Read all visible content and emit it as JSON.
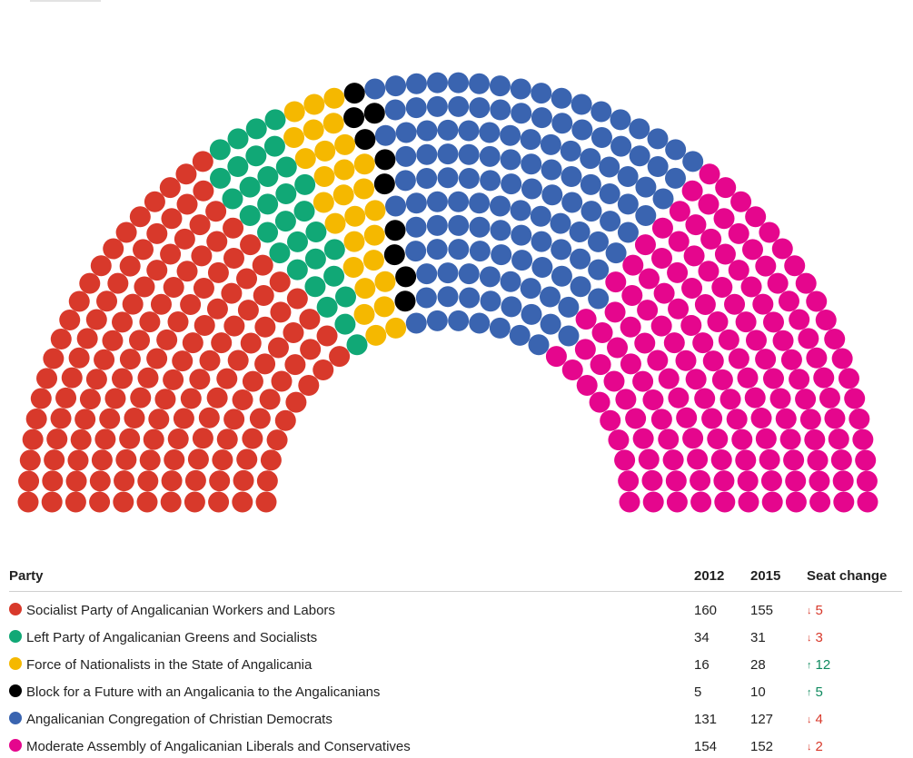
{
  "chart_data": {
    "type": "parliament",
    "total_seats": 503,
    "parties": [
      {
        "name": "Socialist Party of Angalicanian Workers and Labors",
        "seats": 155,
        "color": "#d8392b"
      },
      {
        "name": "Left Party of Angalicanian Greens and Socialists",
        "seats": 31,
        "color": "#11a876"
      },
      {
        "name": "Force of Nationalists in the State of Angalicania",
        "seats": 28,
        "color": "#f5b800"
      },
      {
        "name": "Block for a Future with an Angalicania to the Angalicanians",
        "seats": 10,
        "color": "#000000"
      },
      {
        "name": "Angalicanian Congregation of Christian Democrats",
        "seats": 127,
        "color": "#3a64b0"
      },
      {
        "name": "Moderate Assembly of Angalicanian Liberals and Conservatives",
        "seats": 152,
        "color": "#e5068d"
      }
    ]
  },
  "table": {
    "headers": {
      "party": "Party",
      "y2012": "2012",
      "y2015": "2015",
      "change": "Seat change"
    },
    "rows": [
      {
        "party": "Socialist Party of Angalicanian Workers and Labors",
        "color": "#d8392b",
        "seats_2012": "160",
        "seats_2015": "155",
        "change": "5",
        "direction": "down"
      },
      {
        "party": "Left Party of Angalicanian Greens and Socialists",
        "color": "#11a876",
        "seats_2012": "34",
        "seats_2015": "31",
        "change": "3",
        "direction": "down"
      },
      {
        "party": "Force of Nationalists in the State of Angalicania",
        "color": "#f5b800",
        "seats_2012": "16",
        "seats_2015": "28",
        "change": "12",
        "direction": "up"
      },
      {
        "party": "Block for a Future with an Angalicania to the Angalicanians",
        "color": "#000000",
        "seats_2012": "5",
        "seats_2015": "10",
        "change": "5",
        "direction": "up"
      },
      {
        "party": "Angalicanian Congregation of Christian Democrats",
        "color": "#3a64b0",
        "seats_2012": "131",
        "seats_2015": "127",
        "change": "4",
        "direction": "down"
      },
      {
        "party": "Moderate Assembly of Angalicanian Liberals and Conservatives",
        "color": "#e5068d",
        "seats_2012": "154",
        "seats_2015": "152",
        "change": "2",
        "direction": "down"
      }
    ]
  },
  "colors": {
    "increase": "#0f8a5f",
    "decrease": "#d8392b"
  }
}
